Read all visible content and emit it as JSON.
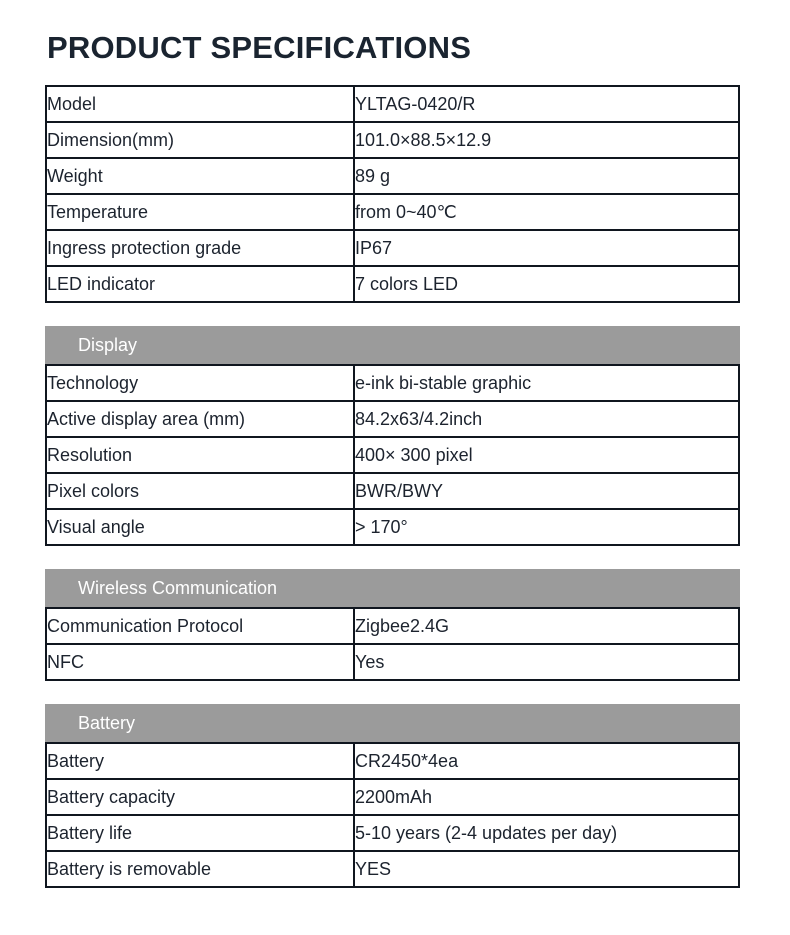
{
  "page": {
    "title": "PRODUCT SPECIFICATIONS"
  },
  "colors": {
    "background": "#ffffff",
    "title_text": "#1a2430",
    "table_border": "#10161f",
    "body_text": "#1c232e",
    "section_header_bg": "#9b9b9b",
    "section_header_text": "#ffffff"
  },
  "sections": [
    {
      "header": null,
      "rows": [
        {
          "label": "Model",
          "value": "YLTAG-0420/R"
        },
        {
          "label": "Dimension(mm)",
          "value": "101.0×88.5×12.9"
        },
        {
          "label": "Weight",
          "value": "89 g"
        },
        {
          "label": "Temperature",
          "value": "from 0~40℃"
        },
        {
          "label": "Ingress protection grade",
          "value": "IP67"
        },
        {
          "label": "LED indicator",
          "value": "7 colors LED"
        }
      ]
    },
    {
      "header": "Display",
      "rows": [
        {
          "label": "Technology",
          "value": "e-ink bi-stable graphic"
        },
        {
          "label": "Active display area (mm)",
          "value": "84.2x63/4.2inch"
        },
        {
          "label": "Resolution",
          "value": "400× 300 pixel"
        },
        {
          "label": "Pixel colors",
          "value": "BWR/BWY"
        },
        {
          "label": "Visual angle",
          "value": "> 170°"
        }
      ]
    },
    {
      "header": "Wireless Communication",
      "rows": [
        {
          "label": "Communication Protocol",
          "value": "Zigbee2.4G"
        },
        {
          "label": "NFC",
          "value": "Yes"
        }
      ]
    },
    {
      "header": "Battery",
      "rows": [
        {
          "label": "Battery",
          "value": "CR2450*4ea"
        },
        {
          "label": "Battery capacity",
          "value": "2200mAh"
        },
        {
          "label": "Battery life",
          "value": "5-10 years (2-4 updates per day)"
        },
        {
          "label": "Battery is removable",
          "value": "YES"
        }
      ]
    }
  ]
}
